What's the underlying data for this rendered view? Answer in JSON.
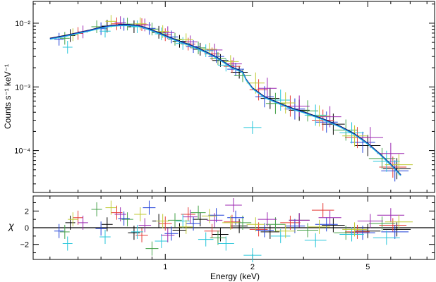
{
  "chart_data": [
    {
      "type": "scatter",
      "panel": "spectrum",
      "xlabel": "Energy (keV)",
      "ylabel": "Counts s⁻¹ keV⁻¹",
      "xscale": "log",
      "yscale": "log",
      "xlim": [
        0.35,
        8.5
      ],
      "ylim": [
        2.2e-05,
        0.022
      ],
      "xticks": [
        1,
        2,
        5
      ],
      "xtick_labels": [
        "1",
        "2",
        "5"
      ],
      "yticks": [
        0.0001,
        0.001,
        0.01
      ],
      "ytick_labels": [
        "10⁻⁴",
        "10⁻³",
        "10⁻²"
      ],
      "model_x": [
        0.4,
        0.45,
        0.5,
        0.55,
        0.6,
        0.65,
        0.7,
        0.75,
        0.8,
        0.85,
        0.9,
        0.95,
        1.0,
        1.1,
        1.2,
        1.3,
        1.4,
        1.5,
        1.6,
        1.7,
        1.75,
        1.8,
        1.85,
        1.9,
        2.0,
        2.2,
        2.4,
        2.6,
        2.8,
        3.0,
        3.5,
        4.0,
        4.5,
        5.0,
        5.5,
        6.0,
        6.5
      ],
      "model_y": [
        0.0057,
        0.0063,
        0.007,
        0.0077,
        0.0085,
        0.0091,
        0.0093,
        0.0093,
        0.0091,
        0.0085,
        0.0077,
        0.007,
        0.0063,
        0.0053,
        0.0046,
        0.004,
        0.0034,
        0.0029,
        0.0024,
        0.002,
        0.0019,
        0.0018,
        0.0017,
        0.0013,
        0.00095,
        0.00069,
        0.00058,
        0.0005,
        0.00044,
        0.0004,
        0.00031,
        0.00024,
        0.00018,
        0.000128,
        8.8e-05,
        6e-05,
        4.1e-05
      ],
      "series": [
        {
          "name": "",
          "color": "#000000",
          "x": [
            0.47,
            0.63,
            0.78,
            0.95,
            1.12,
            1.32,
            1.55,
            1.8,
            2.3,
            2.9,
            3.8,
            5.0,
            6.3
          ],
          "y": [
            0.0064,
            0.009,
            0.0088,
            0.0072,
            0.0052,
            0.0039,
            0.0026,
            0.0017,
            0.00066,
            0.00043,
            0.00026,
            0.00012,
            5.2e-05
          ]
        },
        {
          "name": "",
          "color": "#e53935",
          "x": [
            0.5,
            0.68,
            0.83,
            1.0,
            1.2,
            1.45,
            1.7,
            2.1,
            2.7,
            3.5,
            4.6,
            6.1
          ],
          "y": [
            0.0069,
            0.0098,
            0.0095,
            0.0066,
            0.0047,
            0.0033,
            0.0021,
            0.0009,
            0.0005,
            0.0003,
            0.00016,
            5.5e-05
          ]
        },
        {
          "name": "",
          "color": "#43a047",
          "x": [
            0.45,
            0.58,
            0.74,
            0.9,
            1.08,
            1.3,
            1.52,
            1.85,
            2.4,
            3.1,
            4.2,
            5.6
          ],
          "y": [
            0.0058,
            0.0088,
            0.0097,
            0.0081,
            0.0056,
            0.0041,
            0.0028,
            0.0015,
            0.00055,
            0.00042,
            0.00021,
            7.5e-05
          ]
        },
        {
          "name": "",
          "color": "#1e3fd8",
          "x": [
            0.43,
            0.6,
            0.72,
            0.88,
            1.05,
            1.25,
            1.5,
            1.75,
            2.2,
            2.8,
            3.6,
            4.8,
            6.2
          ],
          "y": [
            0.0056,
            0.0082,
            0.0096,
            0.0083,
            0.0061,
            0.0043,
            0.003,
            0.0019,
            0.0007,
            0.00045,
            0.00028,
            0.000135,
            4.8e-05
          ]
        },
        {
          "name": "",
          "color": "#26c6da",
          "x": [
            0.46,
            0.62,
            0.8,
            0.97,
            1.15,
            1.38,
            1.62,
            2.0,
            2.5,
            3.3,
            4.4,
            5.8
          ],
          "y": [
            0.0042,
            0.0075,
            0.0088,
            0.0068,
            0.0048,
            0.0037,
            0.0022,
            0.00023,
            0.00062,
            0.00036,
            0.00019,
            6.8e-05
          ]
        },
        {
          "name": "",
          "color": "#9c27b0",
          "x": [
            0.52,
            0.7,
            0.85,
            1.02,
            1.22,
            1.48,
            1.72,
            2.25,
            2.9,
            3.7,
            5.1,
            6.0
          ],
          "y": [
            0.0073,
            0.0102,
            0.0094,
            0.0071,
            0.0051,
            0.0038,
            0.0023,
            0.00095,
            0.0005,
            0.00034,
            0.00016,
            9e-05
          ]
        },
        {
          "name": "",
          "color": "#c0ca33",
          "x": [
            0.48,
            0.65,
            0.82,
            0.98,
            1.18,
            1.42,
            1.68,
            2.05,
            2.6,
            3.4,
            4.5,
            6.4
          ],
          "y": [
            0.0066,
            0.0107,
            0.0098,
            0.0074,
            0.0055,
            0.0039,
            0.0025,
            0.00115,
            0.00056,
            0.00035,
            0.00017,
            6e-05
          ]
        }
      ]
    },
    {
      "type": "scatter",
      "panel": "residuals",
      "xlabel": "Energy (keV)",
      "ylabel": "χ",
      "xscale": "log",
      "xlim": [
        0.35,
        8.5
      ],
      "ylim": [
        -3.8,
        3.8
      ],
      "yticks": [
        -2,
        0,
        2
      ],
      "ytick_labels": [
        "−2",
        "0",
        "2"
      ],
      "series": [
        {
          "name": "",
          "color": "#000000",
          "x": [
            0.47,
            0.63,
            0.78,
            0.95,
            1.12,
            1.32,
            1.55,
            1.8,
            2.3,
            2.9,
            3.8,
            5.0,
            6.3
          ],
          "y": [
            0.6,
            0.4,
            -0.6,
            0.8,
            -0.3,
            1.0,
            -0.8,
            0.2,
            -0.5,
            0.9,
            0.3,
            -0.4,
            -0.2
          ]
        },
        {
          "name": "",
          "color": "#e53935",
          "x": [
            0.5,
            0.68,
            0.83,
            1.0,
            1.2,
            1.45,
            1.7,
            2.1,
            2.7,
            3.5,
            4.6,
            6.1
          ],
          "y": [
            1.2,
            1.8,
            -0.9,
            0.5,
            1.6,
            -0.4,
            0.7,
            -0.2,
            0.6,
            2.1,
            -0.5,
            0.3
          ]
        },
        {
          "name": "",
          "color": "#43a047",
          "x": [
            0.45,
            0.58,
            0.74,
            0.9,
            1.08,
            1.3,
            1.52,
            1.85,
            2.4,
            3.1,
            4.2,
            5.6
          ],
          "y": [
            -0.5,
            2.2,
            1.0,
            -2.5,
            0.9,
            1.8,
            -1.2,
            0.6,
            0.4,
            -0.3,
            -0.6,
            0.5
          ]
        },
        {
          "name": "",
          "color": "#1e3fd8",
          "x": [
            0.43,
            0.6,
            0.72,
            0.88,
            1.05,
            1.25,
            1.5,
            1.75,
            2.2,
            2.8,
            3.6,
            4.8,
            6.2
          ],
          "y": [
            -0.4,
            -0.1,
            1.1,
            2.4,
            -0.7,
            0.5,
            1.5,
            1.2,
            -0.3,
            0.2,
            0.4,
            -0.6,
            -0.5
          ]
        },
        {
          "name": "",
          "color": "#26c6da",
          "x": [
            0.46,
            0.62,
            0.8,
            0.97,
            1.15,
            1.38,
            1.62,
            2.0,
            2.5,
            3.3,
            4.4,
            5.8
          ],
          "y": [
            -1.9,
            -1.1,
            -0.5,
            -1.6,
            0.8,
            -1.4,
            -1.9,
            -3.3,
            -1.0,
            -1.5,
            -0.8,
            -1.2
          ]
        },
        {
          "name": "",
          "color": "#9c27b0",
          "x": [
            0.52,
            0.7,
            0.85,
            1.02,
            1.22,
            1.48,
            1.72,
            2.25,
            2.9,
            3.7,
            5.1,
            6.0
          ],
          "y": [
            0.6,
            1.6,
            0.3,
            -0.9,
            1.3,
            0.9,
            2.7,
            1.0,
            0.9,
            1.2,
            0.8,
            1.5
          ]
        },
        {
          "name": "",
          "color": "#c0ca33",
          "x": [
            0.48,
            0.65,
            0.82,
            0.98,
            1.18,
            1.42,
            1.68,
            2.05,
            2.6,
            3.4,
            4.5,
            6.4
          ],
          "y": [
            1.0,
            2.4,
            1.6,
            0.8,
            0.1,
            1.4,
            0.6,
            0.4,
            -0.4,
            0.1,
            -0.2,
            0.7
          ]
        }
      ]
    }
  ]
}
